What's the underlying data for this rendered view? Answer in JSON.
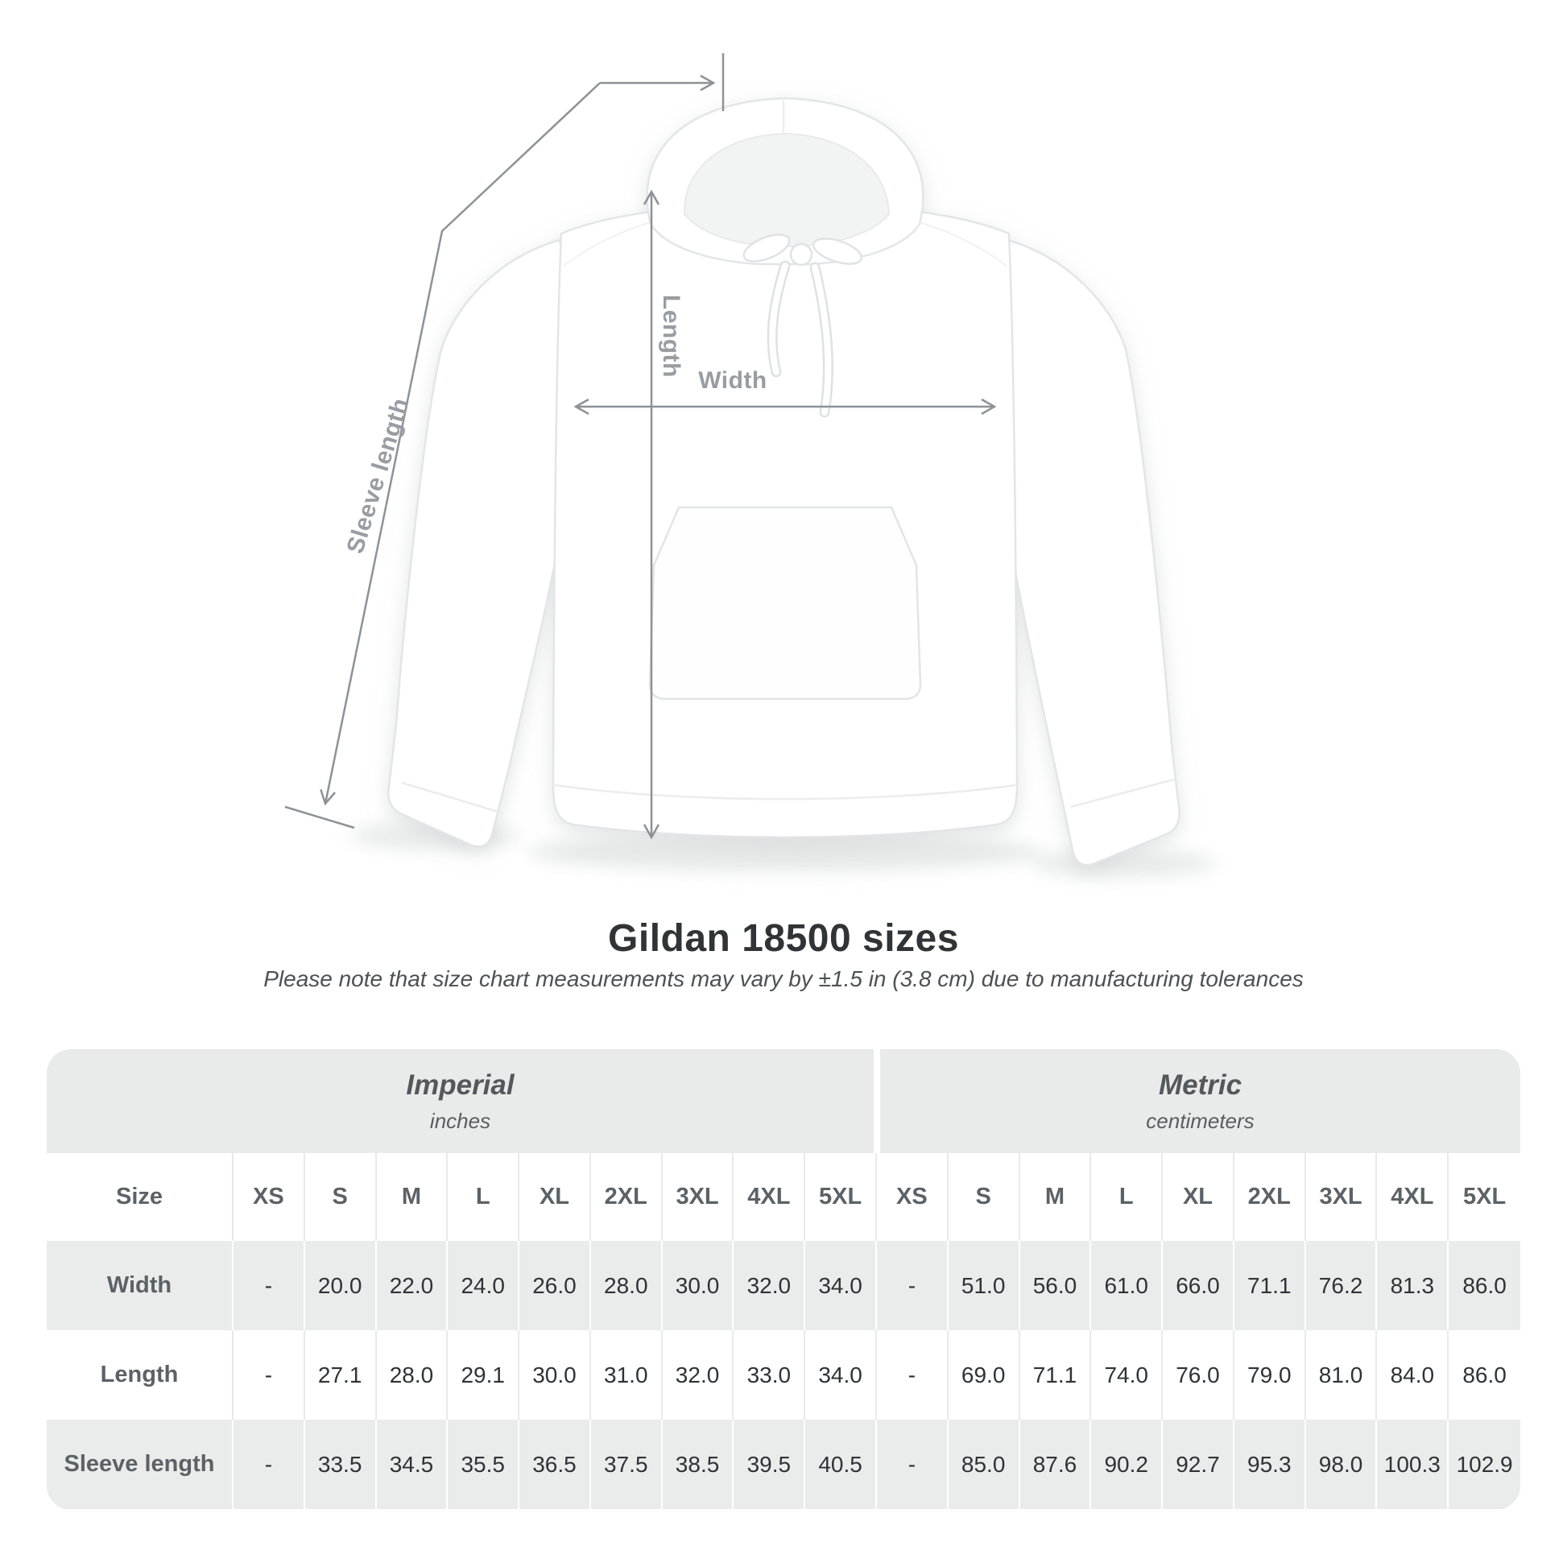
{
  "diagram": {
    "length_label": "Length",
    "width_label": "Width",
    "sleeve_label": "Sleeve length"
  },
  "heading": {
    "title": "Gildan 18500 sizes",
    "subtitle": "Please note that size chart measurements may vary by ±1.5 in (3.8 cm) due to manufacturing tolerances"
  },
  "chart_data": {
    "type": "table",
    "title": "Gildan 18500 sizes",
    "unit_groups": [
      {
        "title": "Imperial",
        "subtitle": "inches",
        "columns": 9
      },
      {
        "title": "Metric",
        "subtitle": "centimeters",
        "columns": 9
      }
    ],
    "columns": [
      "Size",
      "XS",
      "S",
      "M",
      "L",
      "XL",
      "2XL",
      "3XL",
      "4XL",
      "5XL",
      "XS",
      "S",
      "M",
      "L",
      "XL",
      "2XL",
      "3XL",
      "4XL",
      "5XL"
    ],
    "rows": [
      {
        "label": "Width",
        "values": [
          "-",
          "20.0",
          "22.0",
          "24.0",
          "26.0",
          "28.0",
          "30.0",
          "32.0",
          "34.0",
          "-",
          "51.0",
          "56.0",
          "61.0",
          "66.0",
          "71.1",
          "76.2",
          "81.3",
          "86.0"
        ]
      },
      {
        "label": "Length",
        "values": [
          "-",
          "27.1",
          "28.0",
          "29.1",
          "30.0",
          "31.0",
          "32.0",
          "33.0",
          "34.0",
          "-",
          "69.0",
          "71.1",
          "74.0",
          "76.0",
          "79.0",
          "81.0",
          "84.0",
          "86.0"
        ]
      },
      {
        "label": "Sleeve length",
        "values": [
          "-",
          "33.5",
          "34.5",
          "35.5",
          "36.5",
          "37.5",
          "38.5",
          "39.5",
          "40.5",
          "-",
          "85.0",
          "87.6",
          "90.2",
          "92.7",
          "95.3",
          "98.0",
          "100.3",
          "102.9"
        ]
      }
    ]
  },
  "colors": {
    "table_header_bg": "#e9eaea",
    "row_alt_bg": "#eaebeb",
    "value_text": "#2f3336",
    "label_text": "#5b6267",
    "dim_line": "#8c9297",
    "dim_label": "#979da2"
  }
}
